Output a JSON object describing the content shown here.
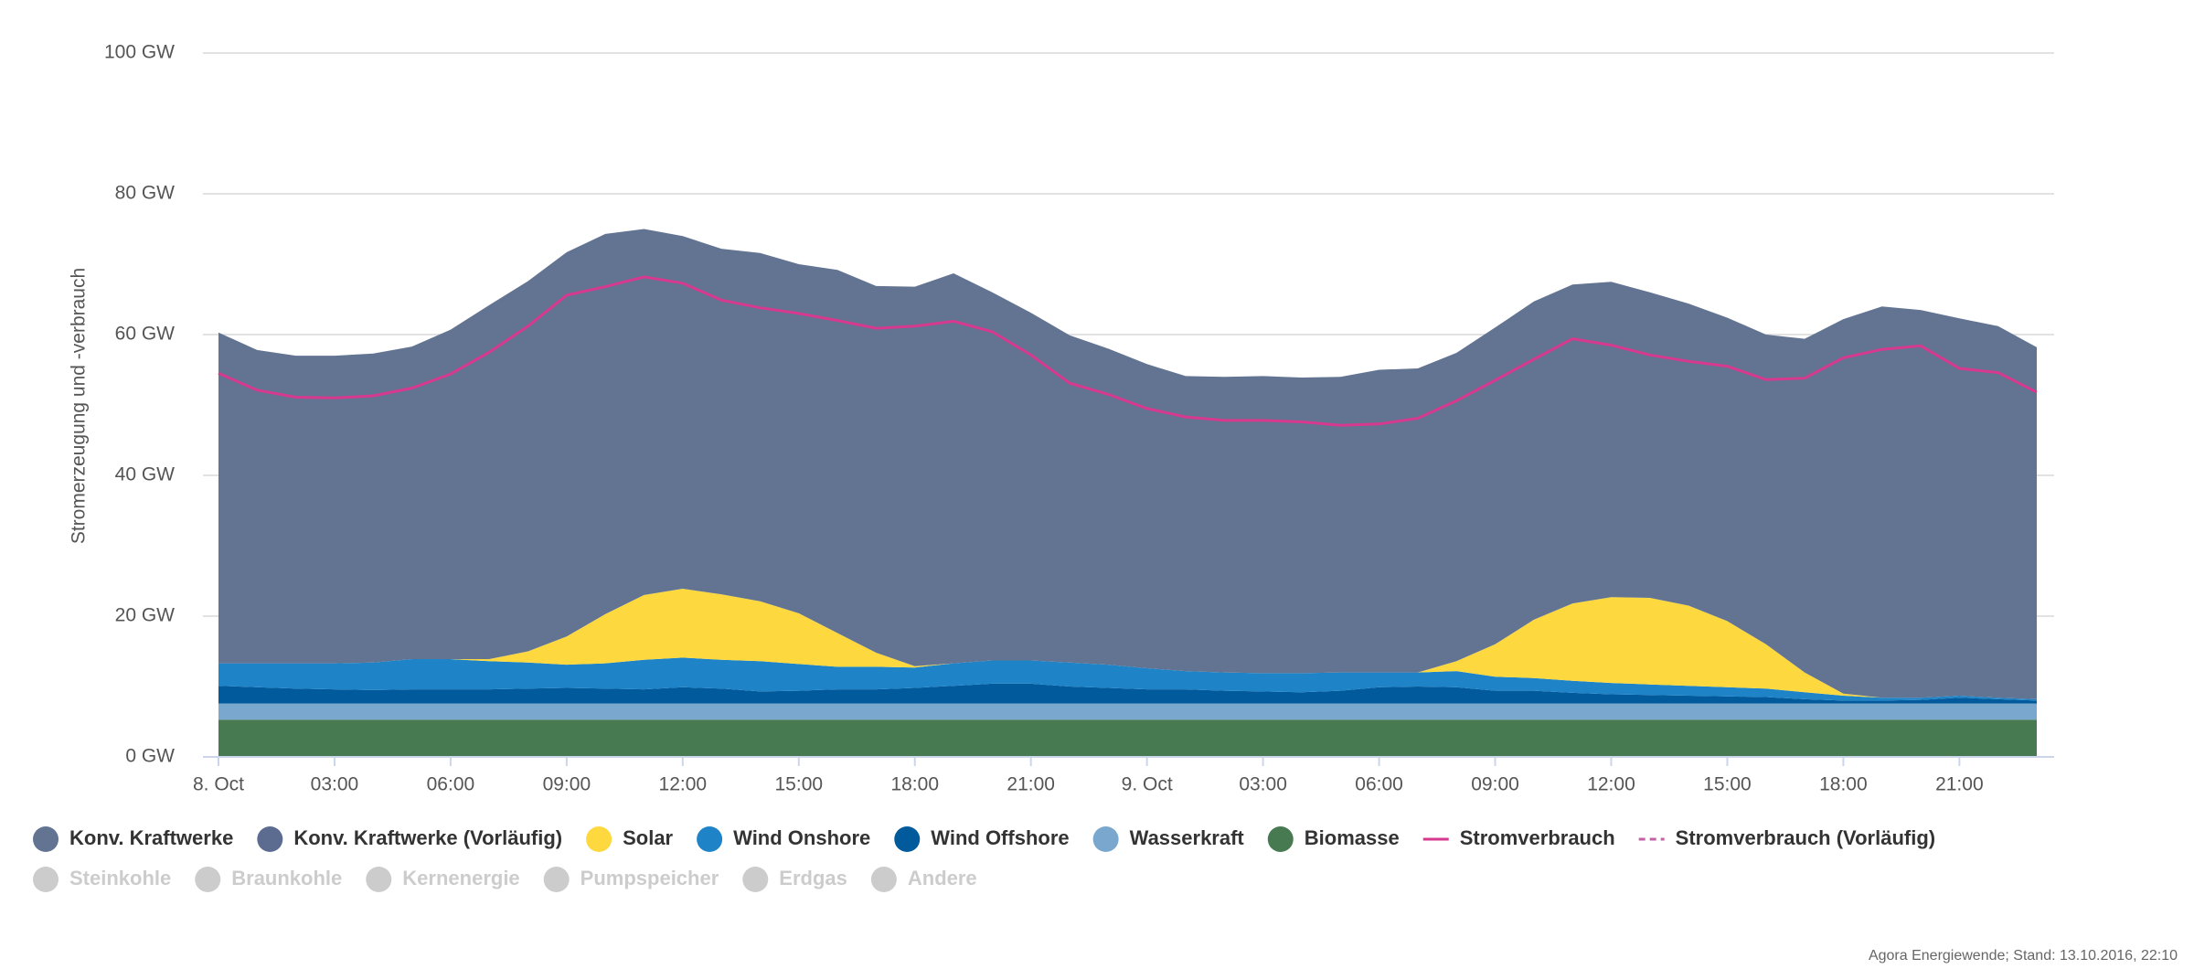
{
  "chart_data": {
    "type": "area",
    "stacked": true,
    "y_axis_label": "Stromerzeugung und -verbrauch",
    "footer": "Agora Energiewende; Stand: 13.10.2016, 22:10",
    "categories": [
      "8. Oct",
      null,
      null,
      "03:00",
      null,
      null,
      "06:00",
      null,
      null,
      "09:00",
      null,
      null,
      "12:00",
      null,
      null,
      "15:00",
      null,
      null,
      "18:00",
      null,
      null,
      "21:00",
      null,
      null,
      "9. Oct",
      null,
      null,
      "03:00",
      null,
      null,
      "06:00",
      null,
      null,
      "09:00",
      null,
      null,
      "12:00",
      null,
      null,
      "15:00",
      null,
      null,
      "18:00",
      null,
      null,
      "21:00",
      null,
      null
    ],
    "ylim": [
      0,
      100
    ],
    "yticks": [
      {
        "value": 0,
        "label": "0 GW"
      },
      {
        "value": 20,
        "label": "20 GW"
      },
      {
        "value": 40,
        "label": "40 GW"
      },
      {
        "value": 60,
        "label": "60 GW"
      },
      {
        "value": 80,
        "label": "80 GW"
      },
      {
        "value": 100,
        "label": "100 GW"
      }
    ],
    "grid": true,
    "series": [
      {
        "name": "Konv. Kraftwerke",
        "color": "#627492",
        "values": [
          47.0,
          44.5,
          43.7,
          43.7,
          43.9,
          44.4,
          46.8,
          50.3,
          52.6,
          54.6,
          54.0,
          52.0,
          50.1,
          49.1,
          49.5,
          49.6,
          51.6,
          52.1,
          53.9,
          55.4,
          52.3,
          49.4,
          46.5,
          44.9,
          43.2,
          41.9,
          42.0,
          42.2,
          42.0,
          42.0,
          43.0,
          43.2,
          43.8,
          45.0,
          45.2,
          45.3,
          44.8,
          43.4,
          42.9,
          43.1,
          44.0,
          47.4,
          53.2,
          55.6,
          55.1,
          53.6,
          52.8,
          50.0
        ]
      },
      {
        "name": "Konv. Kraftwerke (Vorläufig)",
        "color": "#5b6c90"
      },
      {
        "name": "Solar",
        "color": "#fed83f",
        "values": [
          0,
          0,
          0,
          0,
          0,
          0,
          0,
          0.3,
          1.6,
          4.0,
          7.0,
          9.2,
          9.8,
          9.3,
          8.5,
          7.2,
          4.8,
          2.0,
          0.2,
          0,
          0,
          0,
          0,
          0,
          0,
          0,
          0,
          0,
          0,
          0,
          0,
          0,
          1.4,
          4.6,
          8.3,
          11,
          12.2,
          12.3,
          11.4,
          9.4,
          6.3,
          2.8,
          0.3,
          0,
          0,
          0,
          0,
          0
        ]
      },
      {
        "name": "Wind Onshore",
        "color": "#1f84c7",
        "values": [
          3.2,
          3.4,
          3.6,
          3.7,
          3.9,
          4.3,
          4.3,
          4.0,
          3.7,
          3.3,
          3.6,
          4.2,
          4.2,
          4.1,
          4.3,
          3.8,
          3.2,
          3.2,
          2.9,
          3.2,
          3.3,
          3.3,
          3.4,
          3.3,
          3.0,
          2.6,
          2.6,
          2.6,
          2.7,
          2.6,
          2.1,
          2.0,
          2.3,
          2.0,
          1.8,
          1.7,
          1.6,
          1.5,
          1.4,
          1.3,
          1.2,
          1.0,
          0.7,
          0.4,
          0.3,
          0.3,
          0.2,
          0.2
        ]
      },
      {
        "name": "Wind Offshore",
        "color": "#005a9b",
        "values": [
          2.5,
          2.3,
          2.1,
          2.0,
          1.9,
          2.0,
          2.0,
          2.0,
          2.1,
          2.2,
          2.1,
          2.0,
          2.3,
          2.1,
          1.7,
          1.8,
          2.0,
          2.0,
          2.2,
          2.5,
          2.8,
          2.8,
          2.4,
          2.2,
          2.0,
          2.0,
          1.8,
          1.7,
          1.6,
          1.8,
          2.3,
          2.4,
          2.3,
          1.8,
          1.8,
          1.5,
          1.3,
          1.2,
          1.1,
          1.0,
          0.9,
          0.6,
          0.4,
          0.4,
          0.5,
          0.8,
          0.6,
          0.4
        ]
      },
      {
        "name": "Wasserkraft",
        "color": "#7aa7cd",
        "values": [
          2.3,
          2.3,
          2.3,
          2.3,
          2.3,
          2.3,
          2.3,
          2.3,
          2.3,
          2.3,
          2.3,
          2.3,
          2.3,
          2.3,
          2.3,
          2.3,
          2.3,
          2.3,
          2.3,
          2.3,
          2.3,
          2.3,
          2.3,
          2.3,
          2.3,
          2.3,
          2.3,
          2.3,
          2.3,
          2.3,
          2.3,
          2.3,
          2.3,
          2.3,
          2.3,
          2.3,
          2.3,
          2.3,
          2.3,
          2.3,
          2.3,
          2.3,
          2.3,
          2.3,
          2.3,
          2.3,
          2.3,
          2.3
        ]
      },
      {
        "name": "Biomasse",
        "color": "#477a50",
        "values": [
          5.3,
          5.3,
          5.3,
          5.3,
          5.3,
          5.3,
          5.3,
          5.3,
          5.3,
          5.3,
          5.3,
          5.3,
          5.3,
          5.3,
          5.3,
          5.3,
          5.3,
          5.3,
          5.3,
          5.3,
          5.3,
          5.3,
          5.3,
          5.3,
          5.3,
          5.3,
          5.3,
          5.3,
          5.3,
          5.3,
          5.3,
          5.3,
          5.3,
          5.3,
          5.3,
          5.3,
          5.3,
          5.3,
          5.3,
          5.3,
          5.3,
          5.3,
          5.3,
          5.3,
          5.3,
          5.3,
          5.3,
          5.3
        ]
      },
      {
        "name": "Stromverbrauch",
        "type": "line",
        "color": "#d6398d",
        "values": [
          54.5,
          52.1,
          51.1,
          51,
          51.3,
          52.4,
          54.4,
          57.5,
          61.2,
          65.6,
          66.8,
          68.2,
          67.3,
          64.9,
          63.8,
          63,
          62,
          60.9,
          61.2,
          61.9,
          60.4,
          57.1,
          53.1,
          51.5,
          49.5,
          48.3,
          47.8,
          47.8,
          47.6,
          47.1,
          47.3,
          48.1,
          50.6,
          53.5,
          56.5,
          59.4,
          58.5,
          57.1,
          56.2,
          55.5,
          53.6,
          53.8,
          56.7,
          57.9,
          58.4,
          55.2,
          54.6,
          51.8
        ]
      },
      {
        "name": "Stromverbrauch (Vorläufig)",
        "type": "line",
        "dashed": true,
        "color": "#c660a6"
      },
      {
        "name": "Steinkohle",
        "visible": false,
        "color": "#cccccc"
      },
      {
        "name": "Braunkohle",
        "visible": false,
        "color": "#cccccc"
      },
      {
        "name": "Kernenergie",
        "visible": false,
        "color": "#cccccc"
      },
      {
        "name": "Pumpspeicher",
        "visible": false,
        "color": "#cccccc"
      },
      {
        "name": "Erdgas",
        "visible": false,
        "color": "#cccccc"
      },
      {
        "name": "Andere",
        "visible": false,
        "color": "#cccccc"
      }
    ]
  }
}
